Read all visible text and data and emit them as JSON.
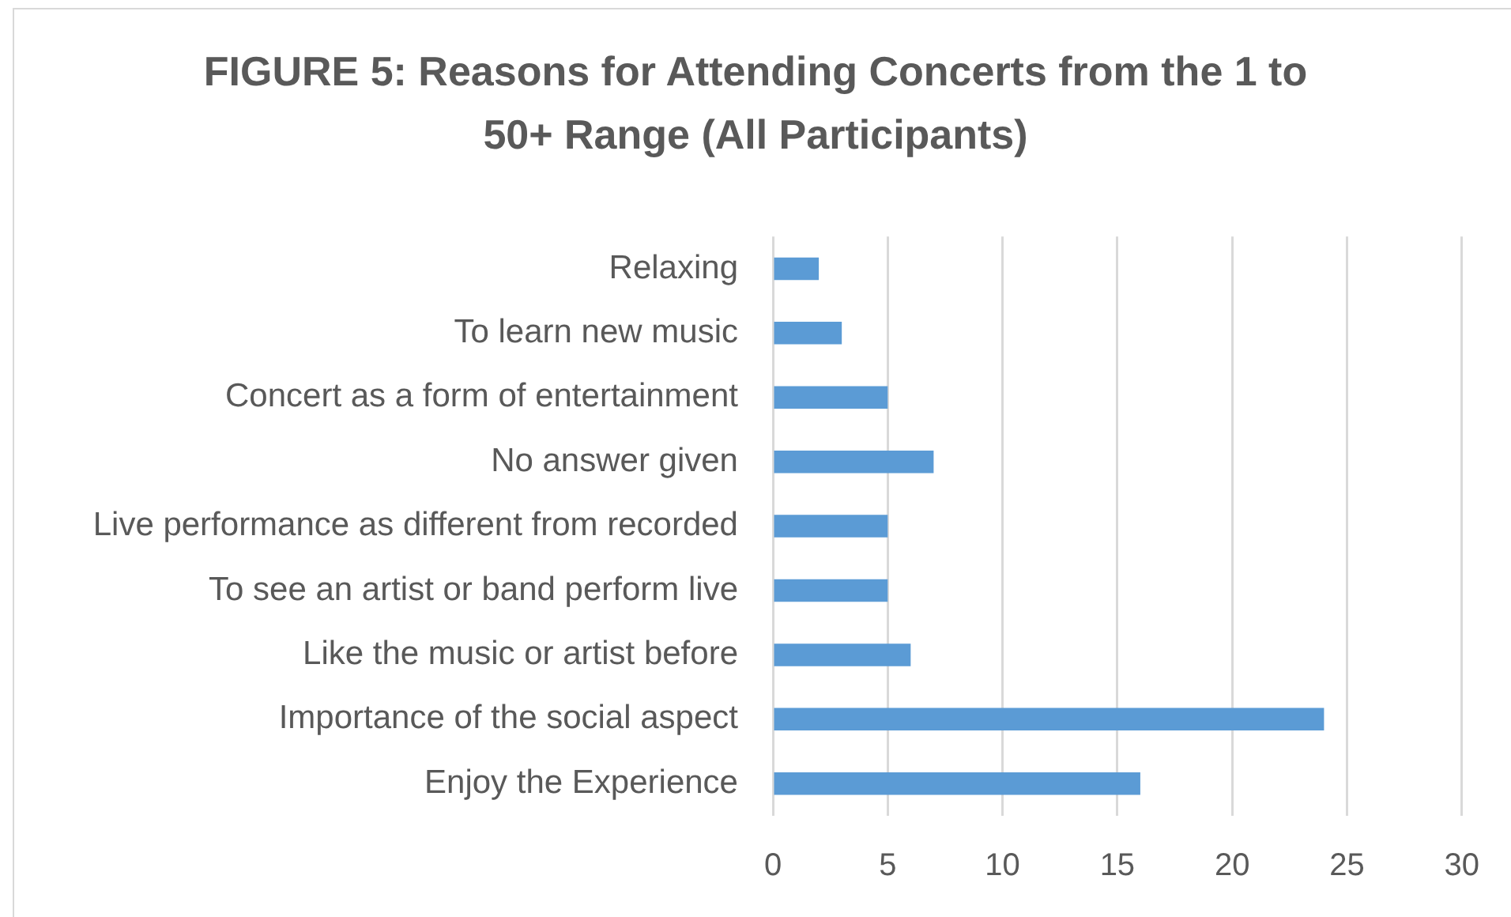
{
  "chart_data": {
    "type": "bar",
    "orientation": "horizontal",
    "title": "FIGURE 5: Reasons for Attending Concerts from the 1 to 50+ Range (All Participants)",
    "categories": [
      "Relaxing",
      "To learn new music",
      "Concert as a form of entertainment",
      "No answer given",
      "Live performance as different from recorded",
      "To see an artist or band perform live",
      "Like the music or artist before",
      "Importance of the social aspect",
      "Enjoy the Experience"
    ],
    "values": [
      2,
      3,
      5,
      7,
      5,
      5,
      6,
      24,
      16
    ],
    "color": "#5b9bd5",
    "xlim": [
      0,
      30
    ],
    "xticks": [
      0,
      5,
      10,
      15,
      20,
      25,
      30
    ],
    "grid": "x"
  }
}
